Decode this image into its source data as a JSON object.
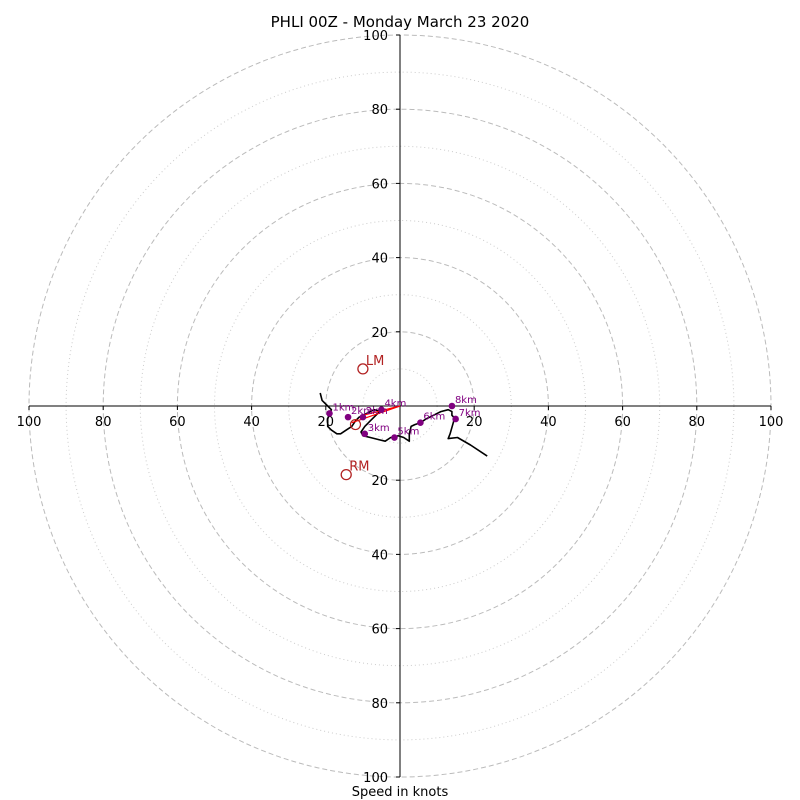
{
  "chart_data": {
    "type": "hodograph",
    "title": "PHLI 00Z - Monday March 23 2020",
    "xlabel": "Speed in knots",
    "xlim": [
      -100,
      100
    ],
    "ylim": [
      -100,
      100
    ],
    "x_tick_labels": [
      "100",
      "80",
      "60",
      "40",
      "20",
      "20",
      "40",
      "60",
      "80",
      "100"
    ],
    "x_tick_values": [
      -100,
      -80,
      -60,
      -40,
      -20,
      20,
      40,
      60,
      80,
      100
    ],
    "y_tick_labels": [
      "100",
      "80",
      "60",
      "40",
      "20",
      "20",
      "40",
      "60",
      "80",
      "100"
    ],
    "y_tick_values": [
      100,
      80,
      60,
      40,
      20,
      -20,
      -40,
      -60,
      -80,
      -100
    ],
    "rings_major": [
      20,
      40,
      60,
      80,
      100
    ],
    "rings_minor": [
      10,
      30,
      50,
      70,
      90
    ],
    "colors": {
      "trace": "#000000",
      "height_marker": "#800080",
      "storm_motion": "#b22222",
      "rings": "#bbbbbb",
      "inflow": "#ff0000"
    },
    "trace": [
      [
        -21.5,
        3.5
      ],
      [
        -21.0,
        1.5
      ],
      [
        -19.5,
        0.0
      ],
      [
        -18.5,
        -1.0
      ],
      [
        -19.0,
        -2.0
      ],
      [
        -19.5,
        -3.5
      ],
      [
        -19.5,
        -5.5
      ],
      [
        -18.5,
        -6.5
      ],
      [
        -17.0,
        -7.5
      ],
      [
        -16.0,
        -7.5
      ],
      [
        -14.5,
        -6.5
      ],
      [
        -13.0,
        -5.5
      ],
      [
        -12.0,
        -4.0
      ],
      [
        -11.0,
        -3.0
      ],
      [
        -10.0,
        -2.5
      ],
      [
        -9.0,
        -2.0
      ],
      [
        -8.0,
        -1.5
      ],
      [
        -7.0,
        -1.0
      ],
      [
        -6.0,
        -1.2
      ],
      [
        -5.0,
        -1.0
      ],
      [
        -6.5,
        -2.5
      ],
      [
        -8.0,
        -4.0
      ],
      [
        -9.5,
        -5.5
      ],
      [
        -10.5,
        -7.0
      ],
      [
        -10.0,
        -8.0
      ],
      [
        -8.0,
        -8.5
      ],
      [
        -6.0,
        -9.0
      ],
      [
        -4.0,
        -9.5
      ],
      [
        -2.5,
        -8.5
      ],
      [
        -1.5,
        -8.5
      ],
      [
        -0.5,
        -8.0
      ],
      [
        1.0,
        -8.5
      ],
      [
        2.5,
        -9.5
      ],
      [
        2.5,
        -7.5
      ],
      [
        3.0,
        -5.5
      ],
      [
        4.0,
        -5.0
      ],
      [
        5.5,
        -4.5
      ],
      [
        7.0,
        -3.5
      ],
      [
        9.0,
        -2.5
      ],
      [
        11.0,
        -1.5
      ],
      [
        13.0,
        -1.0
      ],
      [
        14.0,
        -1.5
      ],
      [
        14.0,
        -2.5
      ],
      [
        15.0,
        -3.5
      ],
      [
        14.5,
        -4.0
      ],
      [
        13.5,
        -7.5
      ],
      [
        13.0,
        -8.8
      ],
      [
        15.5,
        -8.5
      ],
      [
        19.0,
        -10.5
      ],
      [
        23.5,
        -13.5
      ]
    ],
    "height_markers": [
      {
        "label": "1km",
        "u": -19.0,
        "v": -2.0
      },
      {
        "label": "2km",
        "u": -14.0,
        "v": -3.0
      },
      {
        "label": "2km",
        "u": -10.0,
        "v": -3.0
      },
      {
        "label": "3km",
        "u": -9.5,
        "v": -7.5
      },
      {
        "label": "4km",
        "u": -5.0,
        "v": -1.0
      },
      {
        "label": "5km",
        "u": -1.5,
        "v": -8.5
      },
      {
        "label": "6km",
        "u": 5.5,
        "v": -4.5
      },
      {
        "label": "7km",
        "u": 15.0,
        "v": -3.5
      },
      {
        "label": "8km",
        "u": 14.0,
        "v": 0.0
      }
    ],
    "storm_motion": [
      {
        "label": "LM",
        "u": -10.0,
        "v": 10.0
      },
      {
        "label": "RM",
        "u": -14.5,
        "v": -18.5
      }
    ],
    "inflow_lines": [
      {
        "from": [
          -13.0,
          -4.5
        ],
        "to": [
          0.0,
          0.0
        ]
      },
      {
        "from": [
          -10.0,
          -2.5
        ],
        "to": [
          0.0,
          0.0
        ]
      }
    ],
    "effective_marker": {
      "u": -12.0,
      "v": -5.0
    }
  }
}
